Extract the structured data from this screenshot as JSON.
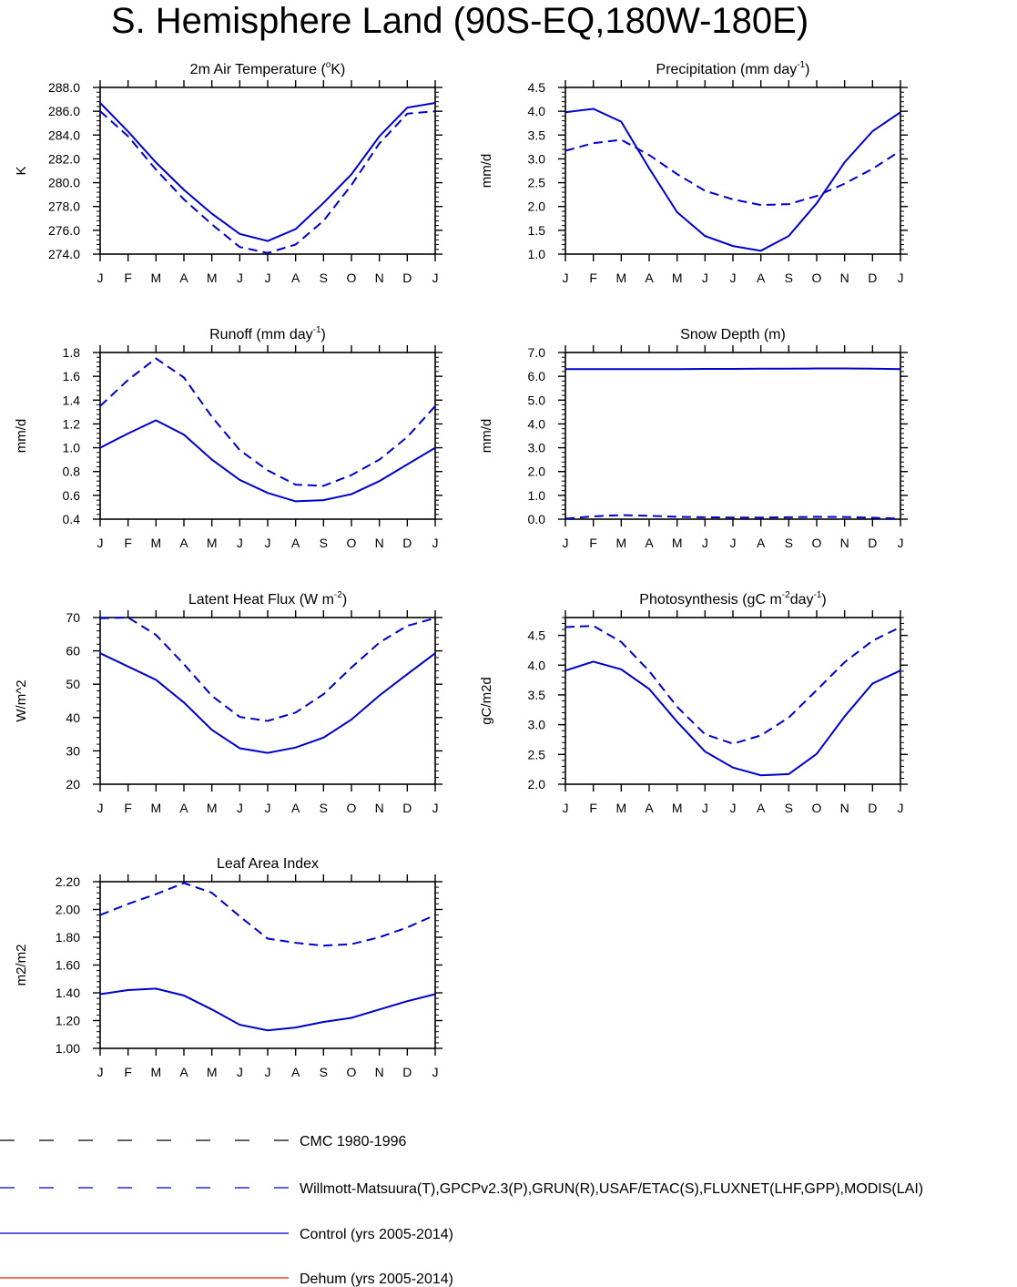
{
  "title": "S. Hemisphere Land (90S-EQ,180W-180E)",
  "months": [
    "J",
    "F",
    "M",
    "A",
    "M",
    "J",
    "J",
    "A",
    "S",
    "O",
    "N",
    "D",
    "J"
  ],
  "colors": {
    "obs_dash": "#0000cc",
    "control": "#0000cc",
    "cmc": "#000000",
    "dehum": "#ff2200"
  },
  "chart_data": [
    {
      "type": "line",
      "title": "2m Air Temperature (°K)",
      "title_parts": [
        "2m Air Temperature (",
        "o",
        "K)"
      ],
      "ylabel": "K",
      "ylim": [
        274,
        288
      ],
      "yticks": [
        274,
        276,
        278,
        280,
        282,
        284,
        286,
        288
      ],
      "ytick_labels": [
        "274.0",
        "276.0",
        "278.0",
        "280.0",
        "282.0",
        "284.0",
        "286.0",
        "288.0"
      ],
      "yminor": 0.4,
      "series": [
        {
          "name": "Willmott-Matsuura (obs)",
          "style": "dashed",
          "values": [
            286.0,
            283.9,
            281.1,
            278.6,
            276.5,
            274.6,
            274.1,
            274.8,
            276.8,
            279.8,
            283.3,
            285.8,
            286.0
          ]
        },
        {
          "name": "Control (yrs 2005-2014)",
          "style": "solid",
          "values": [
            286.7,
            284.3,
            281.7,
            279.4,
            277.4,
            275.7,
            275.1,
            276.1,
            278.3,
            280.7,
            283.9,
            286.3,
            286.7
          ]
        }
      ]
    },
    {
      "type": "line",
      "title": "Precipitation (mm day-1)",
      "title_parts": [
        "Precipitation (mm day",
        "-1",
        ")"
      ],
      "ylabel": "mm/d",
      "ylim": [
        1.0,
        4.5
      ],
      "yticks": [
        1.0,
        1.5,
        2.0,
        2.5,
        3.0,
        3.5,
        4.0,
        4.5
      ],
      "ytick_labels": [
        "1.0",
        "1.5",
        "2.0",
        "2.5",
        "3.0",
        "3.5",
        "4.0",
        "4.5"
      ],
      "yminor": 0.1,
      "series": [
        {
          "name": "GPCPv2.3 (obs)",
          "style": "dashed",
          "values": [
            3.17,
            3.33,
            3.4,
            3.08,
            2.68,
            2.33,
            2.15,
            2.03,
            2.05,
            2.22,
            2.48,
            2.79,
            3.17
          ]
        },
        {
          "name": "Control (yrs 2005-2014)",
          "style": "solid",
          "values": [
            3.98,
            4.05,
            3.78,
            2.8,
            1.88,
            1.38,
            1.17,
            1.07,
            1.38,
            2.07,
            2.93,
            3.58,
            3.98
          ]
        }
      ]
    },
    {
      "type": "line",
      "title": "Runoff (mm day-1)",
      "title_parts": [
        "Runoff (mm day",
        "-1",
        ")"
      ],
      "ylabel": "mm/d",
      "ylim": [
        0.4,
        1.8
      ],
      "yticks": [
        0.4,
        0.6,
        0.8,
        1.0,
        1.2,
        1.4,
        1.6,
        1.8
      ],
      "ytick_labels": [
        "0.4",
        "0.6",
        "0.8",
        "1.0",
        "1.2",
        "1.4",
        "1.6",
        "1.8"
      ],
      "yminor": 0.04,
      "series": [
        {
          "name": "GRUN (obs)",
          "style": "dashed",
          "values": [
            1.35,
            1.57,
            1.75,
            1.59,
            1.26,
            0.98,
            0.81,
            0.69,
            0.68,
            0.77,
            0.9,
            1.09,
            1.35
          ]
        },
        {
          "name": "Control (yrs 2005-2014)",
          "style": "solid",
          "values": [
            1.0,
            1.12,
            1.23,
            1.11,
            0.9,
            0.73,
            0.62,
            0.55,
            0.56,
            0.61,
            0.72,
            0.86,
            1.0
          ]
        }
      ]
    },
    {
      "type": "line",
      "title": "Snow Depth (m)",
      "title_parts": [
        "Snow Depth (m)"
      ],
      "ylabel": "mm/d",
      "ylim": [
        0.0,
        7.0
      ],
      "yticks": [
        0.0,
        1.0,
        2.0,
        3.0,
        4.0,
        5.0,
        6.0,
        7.0
      ],
      "ytick_labels": [
        "0.0",
        "1.0",
        "2.0",
        "3.0",
        "4.0",
        "5.0",
        "6.0",
        "7.0"
      ],
      "yminor": 0.2,
      "series": [
        {
          "name": "USAF/ETAC (obs)",
          "style": "dashed",
          "values": [
            0.02,
            0.12,
            0.17,
            0.14,
            0.1,
            0.08,
            0.07,
            0.07,
            0.08,
            0.1,
            0.09,
            0.06,
            0.02
          ]
        },
        {
          "name": "Control (yrs 2005-2014)",
          "style": "solid",
          "values": [
            6.3,
            6.3,
            6.3,
            6.3,
            6.3,
            6.31,
            6.31,
            6.32,
            6.32,
            6.33,
            6.33,
            6.32,
            6.3
          ]
        }
      ]
    },
    {
      "type": "line",
      "title": "Latent Heat Flux (W m-2)",
      "title_parts": [
        "Latent Heat Flux (W m",
        "-2",
        ")"
      ],
      "ylabel": "W/m^2",
      "ylim": [
        20,
        70
      ],
      "yticks": [
        20,
        30,
        40,
        50,
        60,
        70
      ],
      "ytick_labels": [
        "20",
        "30",
        "40",
        "50",
        "60",
        "70"
      ],
      "yminor": 2,
      "series": [
        {
          "name": "FLUXNET LHF (obs)",
          "style": "dashed",
          "values": [
            69.8,
            70.0,
            64.8,
            56.0,
            46.5,
            40.2,
            39.0,
            41.5,
            47.0,
            55.0,
            62.5,
            67.5,
            69.8
          ]
        },
        {
          "name": "Control (yrs 2005-2014)",
          "style": "solid",
          "values": [
            59.3,
            55.3,
            51.3,
            44.5,
            36.3,
            30.8,
            29.4,
            31.0,
            34.0,
            39.4,
            46.6,
            53.0,
            59.3
          ]
        }
      ]
    },
    {
      "type": "line",
      "title": "Photosynthesis (gC m-2day-1)",
      "title_parts": [
        "Photosynthesis (gC m",
        "-2",
        "day",
        "-1",
        ")"
      ],
      "ylabel": "gC/m2d",
      "ylim": [
        2.0,
        4.8
      ],
      "yticks": [
        2.0,
        2.5,
        3.0,
        3.5,
        4.0,
        4.5
      ],
      "ytick_labels": [
        "2.0",
        "2.5",
        "3.0",
        "3.5",
        "4.0",
        "4.5"
      ],
      "yminor": 0.1,
      "series": [
        {
          "name": "FLUXNET GPP (obs)",
          "style": "dashed",
          "values": [
            4.64,
            4.66,
            4.39,
            3.9,
            3.3,
            2.84,
            2.68,
            2.82,
            3.12,
            3.58,
            4.05,
            4.41,
            4.64
          ]
        },
        {
          "name": "Control (yrs 2005-2014)",
          "style": "solid",
          "values": [
            3.91,
            4.06,
            3.93,
            3.6,
            3.05,
            2.55,
            2.28,
            2.15,
            2.17,
            2.51,
            3.14,
            3.69,
            3.91
          ]
        }
      ]
    },
    {
      "type": "line",
      "title": "Leaf Area Index",
      "title_parts": [
        "Leaf Area Index"
      ],
      "ylabel": "m2/m2",
      "ylim": [
        1.0,
        2.2
      ],
      "yticks": [
        1.0,
        1.2,
        1.4,
        1.6,
        1.8,
        2.0,
        2.2
      ],
      "ytick_labels": [
        "1.00",
        "1.20",
        "1.40",
        "1.60",
        "1.80",
        "2.00",
        "2.20"
      ],
      "yminor": 0.04,
      "series": [
        {
          "name": "MODIS LAI (obs)",
          "style": "dashed",
          "values": [
            1.96,
            2.04,
            2.11,
            2.19,
            2.12,
            1.95,
            1.79,
            1.76,
            1.74,
            1.75,
            1.8,
            1.87,
            1.96
          ]
        },
        {
          "name": "Control (yrs 2005-2014)",
          "style": "solid",
          "values": [
            1.39,
            1.42,
            1.43,
            1.38,
            1.28,
            1.17,
            1.13,
            1.15,
            1.19,
            1.22,
            1.28,
            1.34,
            1.39
          ]
        }
      ]
    }
  ],
  "legend": [
    {
      "label": "CMC 1980-1996",
      "style": "dashed",
      "color_key": "cmc"
    },
    {
      "label": "Willmott-Matsuura(T),GPCPv2.3(P),GRUN(R),USAF/ETAC(S),FLUXNET(LHF,GPP),MODIS(LAI)",
      "style": "dashed",
      "color_key": "obs_dash"
    },
    {
      "label": "Control (yrs 2005-2014)",
      "style": "solid",
      "color_key": "control"
    },
    {
      "label": "Dehum (yrs 2005-2014)",
      "style": "solid",
      "color_key": "dehum"
    }
  ]
}
